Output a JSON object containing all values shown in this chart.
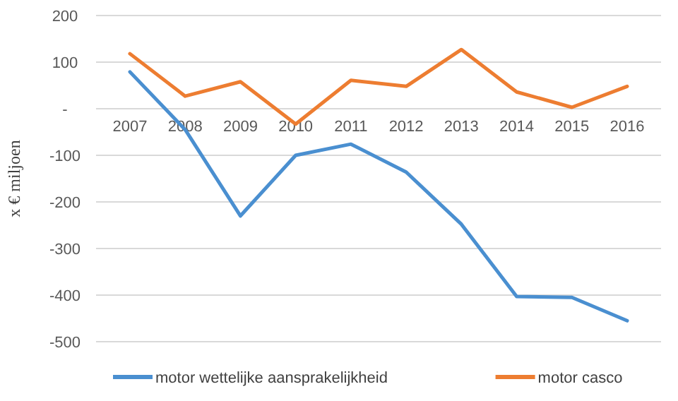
{
  "chart_data": {
    "type": "line",
    "ylabel": "x € miljoen",
    "categories": [
      "2007",
      "2008",
      "2009",
      "2010",
      "2011",
      "2012",
      "2013",
      "2014",
      "2015",
      "2016"
    ],
    "series": [
      {
        "name": "motor wettelijke aansprakelijkheid",
        "color": "#4a8fd0",
        "values": [
          79,
          -45,
          -230,
          -100,
          -76,
          -136,
          -248,
          -403,
          -405,
          -455
        ]
      },
      {
        "name": "motor casco",
        "color": "#ed7d31",
        "values": [
          118,
          27,
          58,
          -33,
          61,
          48,
          127,
          36,
          3,
          48
        ]
      }
    ],
    "ylim": [
      -500,
      200
    ],
    "yticks": [
      -500,
      -400,
      -300,
      -200,
      -100,
      {
        "value": 0,
        "label": "-"
      },
      100,
      200
    ],
    "grid": "y",
    "legend": "bottom",
    "marker": "none",
    "line_style": "solid"
  }
}
